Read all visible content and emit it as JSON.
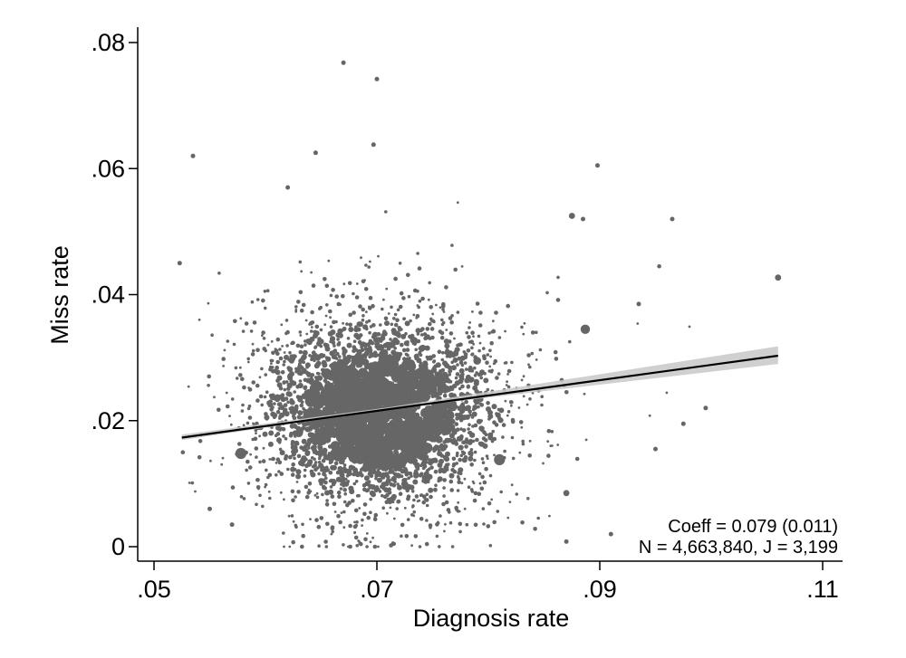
{
  "chart_data": {
    "type": "scatter",
    "title": "",
    "xlabel": "Diagnosis rate",
    "ylabel": "Miss rate",
    "xlim": [
      0.0495,
      0.1105
    ],
    "ylim": [
      -0.002,
      0.0825
    ],
    "x_ticks": [
      {
        "value": 0.05,
        "label": ".05"
      },
      {
        "value": 0.07,
        "label": ".07"
      },
      {
        "value": 0.09,
        "label": ".09"
      },
      {
        "value": 0.11,
        "label": ".11"
      }
    ],
    "y_ticks": [
      {
        "value": 0.0,
        "label": "0"
      },
      {
        "value": 0.02,
        "label": ".02"
      },
      {
        "value": 0.04,
        "label": ".04"
      },
      {
        "value": 0.06,
        "label": ".06"
      },
      {
        "value": 0.08,
        "label": ".08"
      }
    ],
    "grid": false,
    "colors": {
      "points": "#666666",
      "fit_line": "#000000",
      "confidence_band": "#c8c8c8"
    },
    "fit_line": {
      "x": [
        0.0525,
        0.106
      ],
      "y": [
        0.0173,
        0.0303
      ]
    },
    "confidence_band": {
      "x": [
        0.0525,
        0.071,
        0.106
      ],
      "lower": [
        0.0169,
        0.0218,
        0.029
      ],
      "upper": [
        0.0178,
        0.0221,
        0.0318
      ]
    },
    "notable_points": [
      {
        "x": 0.067,
        "y": 0.0768,
        "size": 1
      },
      {
        "x": 0.07,
        "y": 0.0742,
        "size": 1
      },
      {
        "x": 0.0697,
        "y": 0.0638,
        "size": 1
      },
      {
        "x": 0.0535,
        "y": 0.062,
        "size": 1
      },
      {
        "x": 0.0645,
        "y": 0.0625,
        "size": 1
      },
      {
        "x": 0.0898,
        "y": 0.0605,
        "size": 1
      },
      {
        "x": 0.062,
        "y": 0.057,
        "size": 1
      },
      {
        "x": 0.0523,
        "y": 0.045,
        "size": 1
      },
      {
        "x": 0.106,
        "y": 0.0427,
        "size": 2
      },
      {
        "x": 0.0965,
        "y": 0.052,
        "size": 1
      },
      {
        "x": 0.0875,
        "y": 0.0525,
        "size": 2
      },
      {
        "x": 0.0885,
        "y": 0.052,
        "size": 1
      },
      {
        "x": 0.0887,
        "y": 0.0345,
        "size": 4
      },
      {
        "x": 0.0578,
        "y": 0.0148,
        "size": 5
      },
      {
        "x": 0.081,
        "y": 0.0138,
        "size": 5
      },
      {
        "x": 0.063,
        "y": 0.018,
        "size": 3
      },
      {
        "x": 0.0755,
        "y": 0.0265,
        "size": 3
      },
      {
        "x": 0.079,
        "y": 0.0295,
        "size": 3
      },
      {
        "x": 0.0935,
        "y": 0.0385,
        "size": 1
      },
      {
        "x": 0.091,
        "y": 0.002,
        "size": 1
      },
      {
        "x": 0.087,
        "y": 0.0008,
        "size": 1
      },
      {
        "x": 0.0995,
        "y": 0.022,
        "size": 1
      },
      {
        "x": 0.0975,
        "y": 0.0195,
        "size": 1
      },
      {
        "x": 0.095,
        "y": 0.0155,
        "size": 1
      },
      {
        "x": 0.087,
        "y": 0.0085,
        "size": 2
      },
      {
        "x": 0.055,
        "y": 0.006,
        "size": 1
      },
      {
        "x": 0.057,
        "y": 0.0035,
        "size": 1
      }
    ],
    "cluster": {
      "x_mean": 0.0702,
      "y_mean": 0.0215,
      "x_sd": 0.0055,
      "y_sd": 0.0072,
      "count": 3199
    },
    "annotations": [
      "Coeff = 0.079 (0.011)",
      "N = 4,663,840, J = 3,199"
    ]
  }
}
